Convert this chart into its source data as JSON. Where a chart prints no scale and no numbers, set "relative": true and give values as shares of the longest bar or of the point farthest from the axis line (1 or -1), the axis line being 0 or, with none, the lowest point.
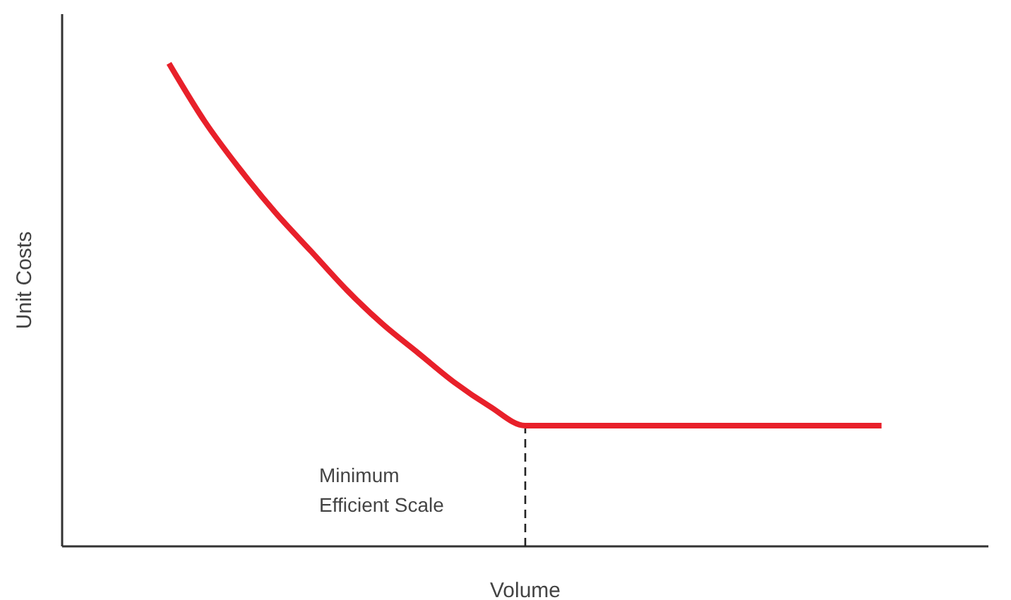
{
  "chart_data": {
    "type": "line",
    "xlabel": "Volume",
    "ylabel": "Unit Costs",
    "relative": true,
    "marker": "none",
    "line_style": "solid",
    "categories": [
      null,
      null,
      null,
      null,
      null,
      null,
      null,
      null,
      null,
      null,
      null,
      null,
      null,
      null,
      null,
      null,
      null,
      null,
      null,
      null,
      null,
      null,
      null,
      null,
      null,
      null,
      null
    ],
    "series": [
      {
        "color": "#e8202a",
        "values": [
          null,
          null,
          null,
          1,
          0.88,
          0.78,
          0.69,
          0.61,
          0.53,
          0.46,
          0.4,
          0.34,
          0.29,
          0.25,
          0.25,
          0.25,
          0.25,
          0.25,
          0.25,
          0.25,
          0.25,
          0.25,
          0.25,
          0.25,
          null,
          null,
          null
        ]
      }
    ],
    "annotations": [
      "Minimum Efficient Scale"
    ]
  }
}
